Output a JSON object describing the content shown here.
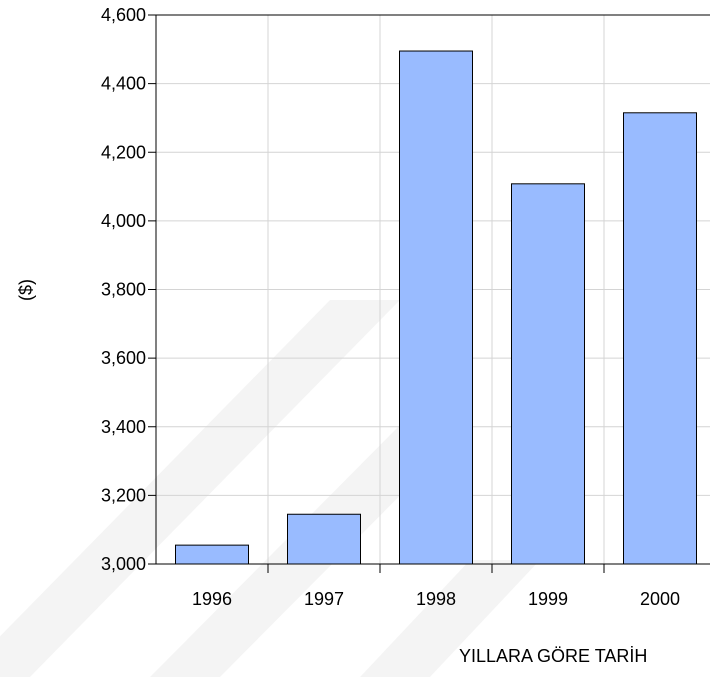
{
  "chart_data": {
    "type": "bar",
    "categories": [
      "1996",
      "1997",
      "1998",
      "1999",
      "2000"
    ],
    "values": [
      3055,
      3145,
      4495,
      4108,
      4315
    ],
    "ylabel": "($)",
    "xlabel": "YILLARA GÖRE TARİH",
    "ylim": [
      3000,
      4600
    ],
    "yticks": [
      3000,
      3200,
      3400,
      3600,
      3800,
      4000,
      4200,
      4400,
      4600
    ],
    "ytick_labels": [
      "3,000",
      "3,200",
      "3,400",
      "3,600",
      "3,800",
      "4,000",
      "4,200",
      "4,400",
      "4,600"
    ],
    "grid": true,
    "colors": {
      "bar_fill": "#99bbff",
      "bar_stroke": "#000000",
      "grid": "#d4d4d4",
      "axis": "#000000"
    }
  }
}
